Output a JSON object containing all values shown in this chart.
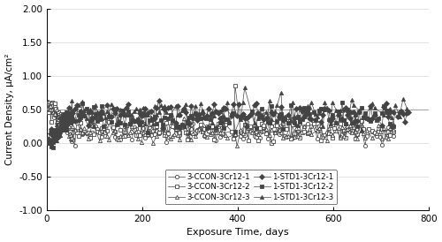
{
  "title": "",
  "xlabel": "Exposure Time, days",
  "ylabel": "Current Density, μA/cm²",
  "xlim": [
    0,
    800
  ],
  "ylim": [
    -1.0,
    2.0
  ],
  "yticks": [
    -1.0,
    -0.5,
    0.0,
    0.5,
    1.0,
    1.5,
    2.0
  ],
  "xticks": [
    0,
    200,
    400,
    600,
    800
  ],
  "series": [
    {
      "label": "3-CCON-3Cr12-1",
      "marker": "o",
      "filled": false
    },
    {
      "label": "3-CCON-3Cr12-2",
      "marker": "s",
      "filled": false
    },
    {
      "label": "3-CCON-3Cr12-3",
      "marker": "^",
      "filled": false
    },
    {
      "label": "1-STD1-3Cr12-1",
      "marker": "D",
      "filled": true
    },
    {
      "label": "1-STD1-3Cr12-2",
      "marker": "s",
      "filled": true
    },
    {
      "label": "1-STD1-3Cr12-3",
      "marker": "^",
      "filled": true
    }
  ],
  "hline_y": 0.5,
  "hline_color": "#999999",
  "line_color": "#444444",
  "bg_color": "#ffffff",
  "legend_ncol": 2,
  "figsize": [
    5.0,
    2.74
  ],
  "dpi": 100
}
